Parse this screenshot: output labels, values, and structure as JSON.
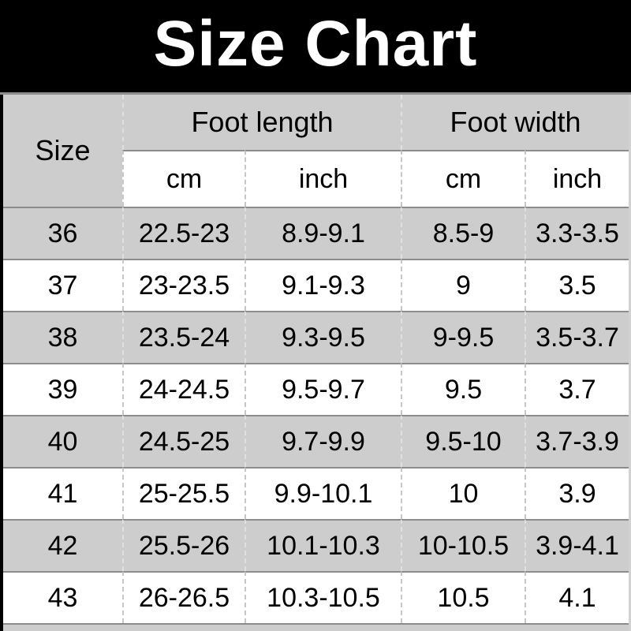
{
  "banner": {
    "title": "Size Chart"
  },
  "colors": {
    "banner_bg": "#000000",
    "banner_text": "#ffffff",
    "row_gray_bg": "#cdcdcd",
    "row_white_bg": "#ffffff",
    "row_separator": "#8c8c8c",
    "column_separator_dashed": "#c7c7c7",
    "text": "#000000"
  },
  "chart_data": {
    "type": "table",
    "title": "Size Chart",
    "corner_header": "Size",
    "group_headers": [
      "Foot length",
      "Foot width"
    ],
    "unit_headers": [
      "cm",
      "inch",
      "cm",
      "inch"
    ],
    "columns": [
      "Size",
      "Foot length cm",
      "Foot length inch",
      "Foot width cm",
      "Foot width inch"
    ],
    "rows": [
      [
        "36",
        "22.5-23",
        "8.9-9.1",
        "8.5-9",
        "3.3-3.5"
      ],
      [
        "37",
        "23-23.5",
        "9.1-9.3",
        "9",
        "3.5"
      ],
      [
        "38",
        "23.5-24",
        "9.3-9.5",
        "9-9.5",
        "3.5-3.7"
      ],
      [
        "39",
        "24-24.5",
        "9.5-9.7",
        "9.5",
        "3.7"
      ],
      [
        "40",
        "24.5-25",
        "9.7-9.9",
        "9.5-10",
        "3.7-3.9"
      ],
      [
        "41",
        "25-25.5",
        "9.9-10.1",
        "10",
        "3.9"
      ],
      [
        "42",
        "25.5-26",
        "10.1-10.3",
        "10-10.5",
        "3.9-4.1"
      ],
      [
        "43",
        "26-26.5",
        "10.3-10.5",
        "10.5",
        "4.1"
      ]
    ],
    "layout": {
      "row_striping": "gray-white alternating starting gray",
      "grid": "dashed column separators, solid row separators"
    }
  }
}
